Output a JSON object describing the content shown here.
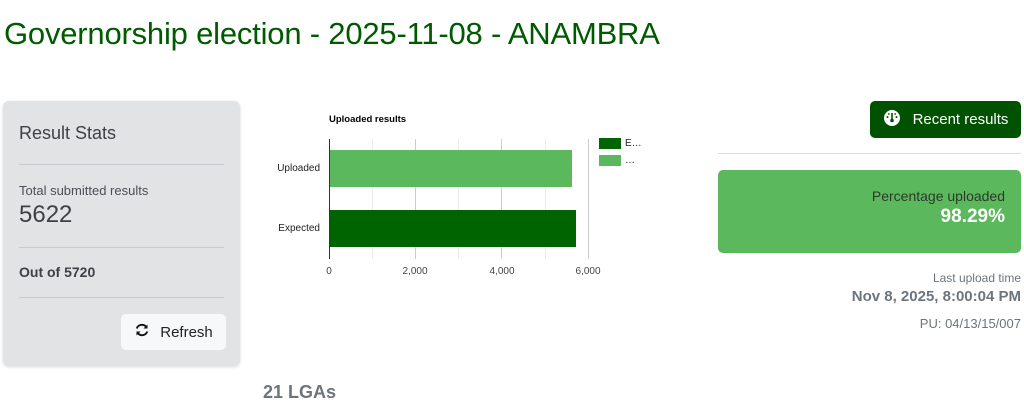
{
  "header": {
    "title": "Governorship election - 2025-11-08 - ANAMBRA"
  },
  "stats_card": {
    "title": "Result Stats",
    "total_label": "Total submitted results",
    "total_value": "5622",
    "out_of": "Out of 5720",
    "refresh_label": "Refresh",
    "refresh_icon": "refresh-icon"
  },
  "chart_data": {
    "type": "bar",
    "orientation": "horizontal",
    "title": "Uploaded results",
    "categories": [
      "Uploaded",
      "Expected"
    ],
    "values": [
      5622,
      5720
    ],
    "colors": [
      "#5cb85c",
      "#006400"
    ],
    "xlabel": "",
    "ylabel": "",
    "xlim": [
      0,
      6000
    ],
    "x_ticks": [
      "0",
      "2,000",
      "4,000",
      "6,000"
    ],
    "grid": true,
    "legend": {
      "position": "right",
      "entries": [
        "E…",
        "…"
      ],
      "colors": [
        "#006400",
        "#5cb85c"
      ]
    }
  },
  "right_panel": {
    "recent_label": "Recent results",
    "recent_icon": "gauge-icon",
    "pct_label": "Percentage uploaded",
    "pct_value": "98.29%",
    "last_upload_label": "Last upload time",
    "last_upload_value": "Nov 8, 2025, 8:00:04 PM",
    "pu_value": "PU: 04/13/15/007"
  },
  "lga": {
    "count_label": "21 LGAs"
  },
  "colors": {
    "brand_dark": "#005200",
    "title_green": "#005a00",
    "success": "#5cb85c",
    "expected": "#006400"
  }
}
